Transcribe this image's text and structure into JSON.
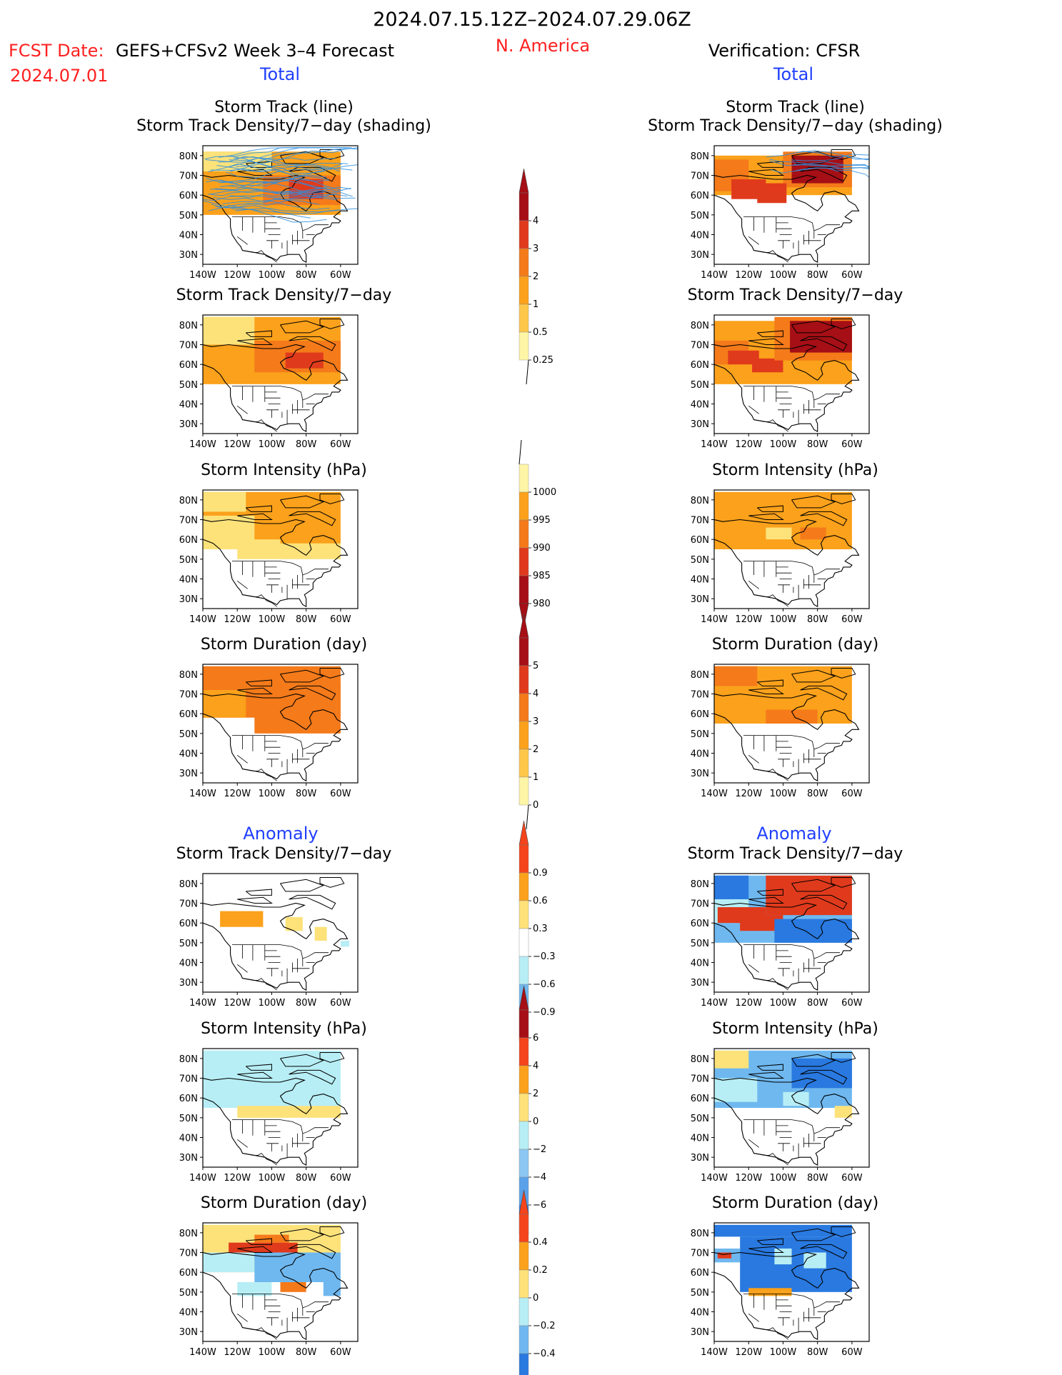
{
  "header": {
    "date_range": "2024.07.15.12Z–2024.07.29.06Z",
    "fcst_label": "FCST Date:",
    "model_label": "GEFS+CFSv2 Week 3–4 Forecast",
    "fcst_date": "2024.07.01",
    "region": "N. America",
    "verification": "Verification: CFSR"
  },
  "sections": {
    "total": "Total",
    "anomaly": "Anomaly"
  },
  "panel_titles": {
    "track_line": "Storm Track (line)",
    "track_shading": "Storm Track Density/7−day (shading)",
    "density": "Storm Track Density/7−day",
    "intensity": "Storm Intensity (hPa)",
    "duration": "Storm Duration (day)"
  },
  "axis": {
    "lat_labels": [
      "80N",
      "70N",
      "60N",
      "50N",
      "40N",
      "30N"
    ],
    "lon_labels": [
      "140W",
      "120W",
      "100W",
      "80W",
      "60W"
    ]
  },
  "colorbars": {
    "density_total": {
      "labels": [
        "4",
        "3",
        "2",
        "1",
        "0.5",
        "0.25"
      ],
      "colors": [
        "#a50f15",
        "#e03a1c",
        "#f47a1a",
        "#fba11b",
        "#fdc74a",
        "#fff5a6"
      ]
    },
    "intensity_total": {
      "labels": [
        "1000",
        "995",
        "990",
        "985",
        "980"
      ],
      "colors": [
        "#fff5a6",
        "#fba11b",
        "#f47a1a",
        "#e03a1c",
        "#a50f15"
      ]
    },
    "duration_total": {
      "labels": [
        "5",
        "4",
        "3",
        "2",
        "1",
        "0"
      ],
      "colors": [
        "#a50f15",
        "#e03a1c",
        "#f47a1a",
        "#fba11b",
        "#fdc74a",
        "#fff5a6"
      ]
    },
    "density_anom": {
      "labels": [
        "0.9",
        "0.6",
        "0.3",
        "−0.3",
        "−0.6",
        "−0.9"
      ],
      "colors": [
        "#f4441b",
        "#fba11b",
        "#fde27a",
        "#ffffff",
        "#b7eef5",
        "#6fb8ef",
        "#2979e0"
      ]
    },
    "intensity_anom": {
      "labels": [
        "6",
        "4",
        "2",
        "0",
        "−2",
        "−4",
        "−6"
      ],
      "colors": [
        "#a50f15",
        "#f4441b",
        "#fba11b",
        "#fde27a",
        "#b7eef5",
        "#8cc6f2",
        "#5aa1ea",
        "#2979e0"
      ]
    },
    "duration_anom": {
      "labels": [
        "0.4",
        "0.2",
        "0",
        "−0.2",
        "−0.4"
      ],
      "colors": [
        "#f4441b",
        "#fba11b",
        "#fde27a",
        "#b7eef5",
        "#6fb8ef",
        "#2979e0"
      ]
    }
  },
  "colors": {
    "header_red": "#ff2020",
    "section_blue": "#1f3fff",
    "track_line": "#2b8ee0",
    "coast": "#000000",
    "orange": "#fba11b",
    "dark_orange": "#f47a1a",
    "red": "#e03a1c",
    "dark_red": "#a50f15",
    "yellow": "#fde27a",
    "light_blue": "#b7eef5",
    "mid_blue": "#6fb8ef",
    "blue": "#2979e0"
  }
}
